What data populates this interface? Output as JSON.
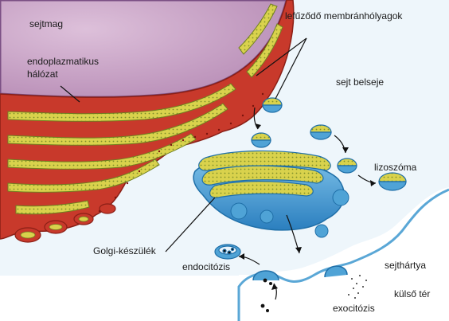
{
  "labels": {
    "nucleus": "sejtmag",
    "er_line1": "endoplazmatikus",
    "er_line2": "hálózat",
    "vesicles": "lefűződő membránhólyagok",
    "cytoplasm": "sejt belseje",
    "lysosome": "lizoszóma",
    "golgi": "Golgi-készülék",
    "endocytosis": "endocitózis",
    "membrane": "sejthártya",
    "exterior": "külső tér",
    "exocytosis": "exocitózis"
  },
  "colors": {
    "nucleus": "#c9a3c6",
    "nucleus_edge": "#7b4f84",
    "er_red": "#c8392b",
    "er_dark": "#8a1f16",
    "er_yellow": "#d8d24a",
    "er_green": "#9aa83a",
    "golgi_blue": "#4fa3d6",
    "golgi_dark": "#1f6fa8",
    "cytoplasm": "#eaf4fb",
    "exterior": "#ffffff"
  }
}
